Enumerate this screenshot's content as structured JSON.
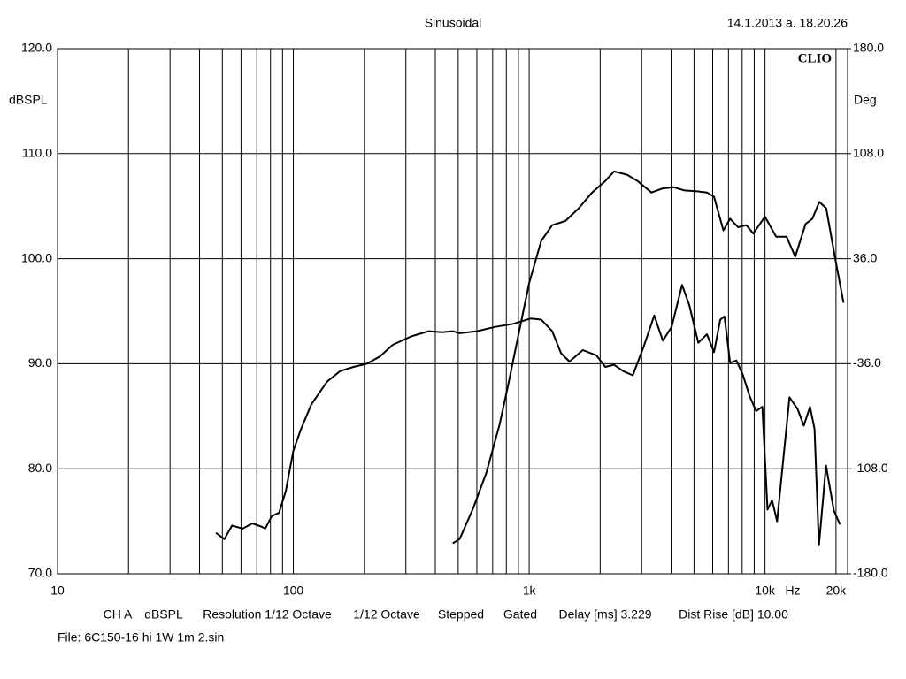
{
  "chart_data": {
    "type": "line",
    "title": "Sinusoidal",
    "timestamp": "14.1.2013 ä. 18.20.26",
    "brand": "CLIO",
    "ylabel": "dBSPL",
    "y2label": "Deg",
    "xlabel": "Hz",
    "xscale": "log",
    "grid": true,
    "xlim": [
      10,
      22400
    ],
    "xticks": [
      10,
      100,
      {
        "value": 1000,
        "label": "1k"
      },
      {
        "value": 10000,
        "label": "10k"
      },
      {
        "value": 20000,
        "label": "20k"
      }
    ],
    "x_minor_ticks": [
      20,
      30,
      40,
      50,
      60,
      70,
      80,
      90,
      200,
      300,
      400,
      500,
      600,
      700,
      800,
      900,
      2000,
      3000,
      4000,
      5000,
      6000,
      7000,
      8000,
      9000
    ],
    "ylim": [
      70,
      120
    ],
    "yticks": [
      {
        "value": 70,
        "label": "70.0"
      },
      {
        "value": 80,
        "label": "80.0"
      },
      {
        "value": 90,
        "label": "90.0"
      },
      {
        "value": 100,
        "label": "100.0"
      },
      {
        "value": 110,
        "label": "110.0"
      },
      {
        "value": 120,
        "label": "120.0"
      }
    ],
    "y2lim": [
      -180,
      180
    ],
    "y2ticks": [
      {
        "value": -180,
        "label": "-180.0"
      },
      {
        "value": -108,
        "label": "-108.0"
      },
      {
        "value": -36,
        "label": "-36.0"
      },
      {
        "value": 36,
        "label": "36.0"
      },
      {
        "value": 108,
        "label": "108.0"
      },
      {
        "value": 180,
        "label": "180.0"
      }
    ],
    "series": [
      {
        "color": "#000000",
        "x": [
          47,
          51,
          55,
          61,
          67,
          73,
          76,
          81,
          87,
          93,
          100,
          107,
          119,
          139,
          158,
          180,
          205,
          233,
          264,
          316,
          375,
          427,
          474,
          507,
          600,
          715,
          855,
          1013,
          1125,
          1252,
          1365,
          1482,
          1688,
          1928,
          2102,
          2290,
          2500,
          2751,
          3055,
          3390,
          3690,
          4020,
          4450,
          4770,
          5210,
          5670,
          6080,
          6460,
          6730,
          7110,
          7560,
          8040,
          8610,
          9170,
          9740,
          10250,
          10710,
          11250,
          12700,
          13740,
          14600,
          15520,
          16210,
          16930,
          18150,
          19600,
          20800
        ],
        "values": [
          73.9,
          73.3,
          74.6,
          74.3,
          74.8,
          74.5,
          74.3,
          75.5,
          75.8,
          77.9,
          81.7,
          83.6,
          86.1,
          88.3,
          89.3,
          89.7,
          90.0,
          90.7,
          91.8,
          92.6,
          93.1,
          93.0,
          93.1,
          92.9,
          93.1,
          93.5,
          93.8,
          94.3,
          94.2,
          93.1,
          91.0,
          90.2,
          91.3,
          90.8,
          89.7,
          89.9,
          89.3,
          88.9,
          91.6,
          94.6,
          92.2,
          93.5,
          97.5,
          95.6,
          92.0,
          92.8,
          91.1,
          94.2,
          94.5,
          90.1,
          90.3,
          89.0,
          86.9,
          85.5,
          85.9,
          76.1,
          77.0,
          75.0,
          86.8,
          85.7,
          84.1,
          85.9,
          83.8,
          72.7,
          80.3,
          76.0,
          74.7
        ]
      },
      {
        "color": "#000000",
        "axis": "y2",
        "x": [
          474,
          507,
          578,
          658,
          749,
          815,
          890,
          1000,
          1125,
          1252,
          1425,
          1623,
          1849,
          2102,
          2290,
          2600,
          2880,
          3300,
          3690,
          4095,
          4560,
          5210,
          5670,
          6080,
          6660,
          7110,
          7690,
          8340,
          8920,
          10000,
          11150,
          12340,
          13430,
          14860,
          15880,
          16990,
          18180,
          19780,
          21530
        ],
        "values": [
          -159.1,
          -156.2,
          -135.4,
          -110.9,
          -77.8,
          -50.4,
          -20.2,
          19.4,
          48.2,
          59.0,
          61.9,
          70.6,
          81.4,
          89.3,
          95.8,
          93.6,
          89.3,
          81.4,
          84.2,
          85.0,
          82.8,
          82.1,
          81.4,
          78.5,
          55.4,
          63.4,
          57.6,
          59.0,
          53.3,
          64.8,
          51.1,
          51.1,
          37.4,
          59.8,
          63.4,
          74.9,
          70.6,
          37.4,
          5.8
        ]
      }
    ],
    "footer": [
      "CH A",
      "dBSPL",
      "Resolution 1/12 Octave",
      "1/12 Octave",
      "Stepped",
      "Gated",
      "Delay [ms] 3.229",
      "Dist Rise [dB] 10.00"
    ],
    "file": "File: 6C150-16 hi 1W 1m 2.sin"
  }
}
